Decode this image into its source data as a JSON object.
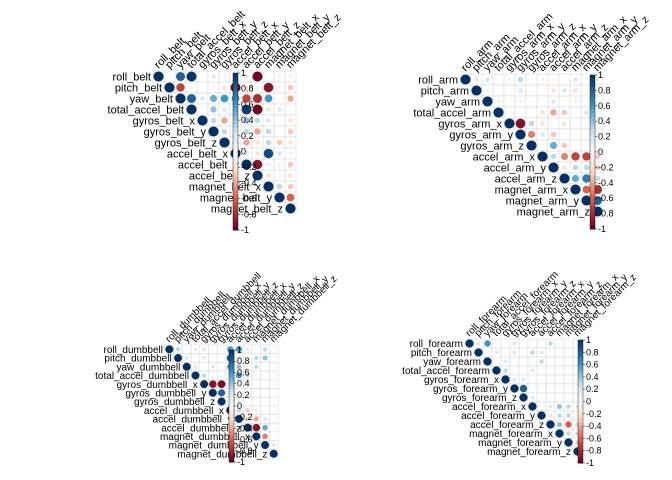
{
  "colors": {
    "neg_strong": "#67001f",
    "neg_mid": "#d6604d",
    "neg_light": "#fddbc7",
    "neutral": "#f7f7f7",
    "pos_light": "#d1e5f0",
    "pos_mid": "#4393c3",
    "pos_strong": "#053061",
    "grid": "#d9d9d9"
  },
  "chart_data": [
    {
      "type": "heatmap",
      "shape": "circle",
      "triangle": "upper",
      "legend_ticks": [
        "1",
        "0.8",
        "0.6",
        "0.4",
        "0.2",
        "0",
        "-0.2",
        "-0.4",
        "-0.6",
        "-0.8",
        "-1"
      ],
      "labels": [
        "roll_belt",
        "pitch_belt",
        "yaw_belt",
        "total_accel_belt",
        "gyros_belt_x",
        "gyros_belt_y",
        "gyros_belt_z",
        "accel_belt_x",
        "accel_belt_y",
        "accel_belt_z",
        "magnet_belt_x",
        "magnet_belt_y",
        "magnet_belt_z"
      ],
      "cells": [
        [
          0,
          2,
          0.8
        ],
        [
          0,
          3,
          0.98
        ],
        [
          0,
          5,
          0.2
        ],
        [
          0,
          6,
          0.1
        ],
        [
          0,
          7,
          -0.2
        ],
        [
          0,
          8,
          0.2
        ],
        [
          0,
          9,
          -0.98
        ],
        [
          0,
          11,
          0.1
        ],
        [
          0,
          12,
          0.1
        ],
        [
          1,
          2,
          -0.7
        ],
        [
          1,
          3,
          -0.1
        ],
        [
          1,
          5,
          -0.1
        ],
        [
          1,
          6,
          -0.2
        ],
        [
          1,
          7,
          -0.97
        ],
        [
          1,
          8,
          -0.2
        ],
        [
          1,
          9,
          0.1
        ],
        [
          1,
          10,
          -0.9
        ],
        [
          1,
          11,
          -0.1
        ],
        [
          1,
          12,
          -0.3
        ],
        [
          2,
          3,
          0.8
        ],
        [
          2,
          4,
          0.2
        ],
        [
          2,
          5,
          0.5
        ],
        [
          2,
          6,
          0.6
        ],
        [
          2,
          7,
          0.6
        ],
        [
          2,
          8,
          -0.7
        ],
        [
          2,
          9,
          -0.8
        ],
        [
          2,
          10,
          0.6
        ],
        [
          2,
          12,
          -0.4
        ],
        [
          3,
          5,
          0.4
        ],
        [
          3,
          6,
          0.2
        ],
        [
          3,
          7,
          0.3
        ],
        [
          3,
          8,
          0.95
        ],
        [
          3,
          9,
          -0.97
        ],
        [
          3,
          10,
          -0.2
        ],
        [
          3,
          11,
          0.2
        ],
        [
          4,
          5,
          0.3
        ],
        [
          4,
          6,
          -0.4
        ],
        [
          4,
          7,
          -0.2
        ],
        [
          4,
          8,
          0.4
        ],
        [
          4,
          9,
          0.3
        ],
        [
          4,
          10,
          0.2
        ],
        [
          4,
          12,
          -0.2
        ],
        [
          5,
          6,
          0.3
        ],
        [
          5,
          7,
          0.2
        ],
        [
          5,
          8,
          0.3
        ],
        [
          5,
          9,
          -0.4
        ],
        [
          5,
          10,
          0.3
        ],
        [
          5,
          12,
          -0.3
        ],
        [
          6,
          7,
          0.4
        ],
        [
          6,
          8,
          -0.4
        ],
        [
          6,
          9,
          -0.2
        ],
        [
          6,
          10,
          0.3
        ],
        [
          6,
          11,
          -0.3
        ],
        [
          6,
          12,
          -0.2
        ],
        [
          7,
          8,
          0.2
        ],
        [
          7,
          9,
          -0.2
        ],
        [
          7,
          10,
          0.9
        ],
        [
          7,
          11,
          0.2
        ],
        [
          7,
          12,
          -0.1
        ],
        [
          8,
          9,
          -0.9
        ],
        [
          8,
          10,
          -0.1
        ],
        [
          8,
          11,
          0.1
        ],
        [
          8,
          12,
          -0.3
        ],
        [
          9,
          10,
          -0.2
        ],
        [
          9,
          11,
          0.1
        ],
        [
          9,
          12,
          -0.2
        ],
        [
          10,
          11,
          0.3
        ],
        [
          10,
          12,
          -0.3
        ],
        [
          11,
          12,
          -0.6
        ]
      ]
    },
    {
      "type": "heatmap",
      "shape": "circle",
      "triangle": "upper",
      "legend_ticks": [
        "1",
        "0.8",
        "0.6",
        "0.4",
        "0.2",
        "0",
        "-0.2",
        "-0.4",
        "-0.6",
        "-0.8",
        "-1"
      ],
      "labels": [
        "roll_arm",
        "pitch_arm",
        "yaw_arm",
        "total_accel_arm",
        "gyros_arm_x",
        "gyros_arm_y",
        "gyros_arm_z",
        "accel_arm_x",
        "accel_arm_y",
        "accel_arm_z",
        "magnet_arm_x",
        "magnet_arm_y",
        "magnet_arm_z"
      ],
      "cells": [
        [
          0,
          1,
          -0.2
        ],
        [
          0,
          2,
          0.2
        ],
        [
          0,
          4,
          -0.1
        ],
        [
          0,
          5,
          0.3
        ],
        [
          0,
          7,
          0.1
        ],
        [
          0,
          10,
          0.2
        ],
        [
          0,
          12,
          -0.1
        ],
        [
          1,
          2,
          -0.1
        ],
        [
          1,
          5,
          0.2
        ],
        [
          1,
          8,
          -0.2
        ],
        [
          1,
          9,
          0.2
        ],
        [
          1,
          10,
          -0.2
        ],
        [
          2,
          3,
          0.1
        ],
        [
          2,
          5,
          -0.1
        ],
        [
          2,
          8,
          0.2
        ],
        [
          2,
          10,
          -0.1
        ],
        [
          3,
          7,
          -0.2
        ],
        [
          3,
          8,
          -0.4
        ],
        [
          3,
          9,
          -0.3
        ],
        [
          3,
          11,
          0.2
        ],
        [
          4,
          5,
          -0.92
        ],
        [
          4,
          6,
          0.3
        ],
        [
          4,
          7,
          -0.2
        ],
        [
          4,
          9,
          -0.2
        ],
        [
          5,
          6,
          -0.5
        ],
        [
          5,
          7,
          0.2
        ],
        [
          5,
          8,
          -0.3
        ],
        [
          6,
          8,
          0.5
        ],
        [
          6,
          9,
          -0.3
        ],
        [
          7,
          8,
          0.3
        ],
        [
          7,
          9,
          -0.5
        ],
        [
          7,
          10,
          -0.7
        ],
        [
          7,
          11,
          -0.7
        ],
        [
          7,
          12,
          -0.3
        ],
        [
          8,
          9,
          -0.2
        ],
        [
          8,
          10,
          0.3
        ],
        [
          8,
          11,
          0.3
        ],
        [
          8,
          12,
          -0.3
        ],
        [
          9,
          10,
          0.5
        ],
        [
          9,
          11,
          0.7
        ],
        [
          9,
          12,
          0.3
        ],
        [
          10,
          11,
          -0.6
        ],
        [
          10,
          12,
          -0.8
        ],
        [
          11,
          12,
          0.8
        ]
      ]
    },
    {
      "type": "heatmap",
      "shape": "circle",
      "triangle": "upper",
      "legend_ticks": [
        "1",
        "0.8",
        "0.6",
        "0.4",
        "0.2",
        "0",
        "-0.2",
        "-0.4",
        "-0.6",
        "-0.8",
        "-1"
      ],
      "labels": [
        "roll_dumbbell",
        "pitch_dumbbell",
        "yaw_dumbbell",
        "total_accel_dumbbell",
        "gyros_dumbbell_x",
        "gyros_dumbbell_y",
        "gyros_dumbbell_z",
        "accel_dumbbell_x",
        "accel_dumbbell_y",
        "accel_dumbbell_z",
        "magnet_dumbbell_x",
        "magnet_dumbbell_y",
        "magnet_dumbbell_z"
      ],
      "cells": [
        [
          0,
          1,
          0.3
        ],
        [
          0,
          3,
          0.2
        ],
        [
          0,
          4,
          0.2
        ],
        [
          0,
          7,
          0.6
        ],
        [
          0,
          8,
          0.6
        ],
        [
          0,
          9,
          0.2
        ],
        [
          0,
          11,
          0.3
        ],
        [
          1,
          2,
          0.2
        ],
        [
          1,
          4,
          0.2
        ],
        [
          1,
          7,
          0.8
        ],
        [
          1,
          8,
          0.2
        ],
        [
          1,
          10,
          0.3
        ],
        [
          1,
          11,
          0.4
        ],
        [
          2,
          3,
          0.2
        ],
        [
          2,
          5,
          0.2
        ],
        [
          2,
          7,
          0.6
        ],
        [
          2,
          8,
          0.4
        ],
        [
          2,
          10,
          0.3
        ],
        [
          3,
          4,
          0.3
        ],
        [
          3,
          8,
          0.6
        ],
        [
          3,
          9,
          0.3
        ],
        [
          4,
          5,
          -0.9
        ],
        [
          4,
          6,
          -0.95
        ],
        [
          5,
          6,
          0.8
        ],
        [
          6,
          8,
          0.2
        ],
        [
          7,
          8,
          0.3
        ],
        [
          7,
          9,
          -0.3
        ],
        [
          7,
          10,
          0.2
        ],
        [
          8,
          9,
          -0.3
        ],
        [
          8,
          10,
          -0.4
        ],
        [
          8,
          11,
          0.2
        ],
        [
          9,
          10,
          -0.9
        ],
        [
          9,
          11,
          0.5
        ],
        [
          10,
          11,
          -0.5
        ],
        [
          11,
          12,
          0.2
        ]
      ]
    },
    {
      "type": "heatmap",
      "shape": "circle",
      "triangle": "upper",
      "legend_ticks": [
        "1",
        "0.8",
        "0.6",
        "0.4",
        "0.2",
        "0",
        "-0.2",
        "-0.4",
        "-0.6",
        "-0.8",
        "-1"
      ],
      "labels": [
        "roll_forearm",
        "pitch_forearm",
        "yaw_forearm",
        "total_accel_forearm",
        "gyros_forearm_x",
        "gyros_forearm_y",
        "gyros_forearm_z",
        "accel_forearm_x",
        "accel_forearm_y",
        "accel_forearm_z",
        "magnet_forearm_x",
        "magnet_forearm_y",
        "magnet_forearm_z"
      ],
      "cells": [
        [
          0,
          1,
          0.2
        ],
        [
          0,
          2,
          0.6
        ],
        [
          0,
          5,
          0.2
        ],
        [
          0,
          9,
          0.3
        ],
        [
          1,
          3,
          0.2
        ],
        [
          1,
          5,
          0.2
        ],
        [
          1,
          7,
          0.3
        ],
        [
          1,
          8,
          0.2
        ],
        [
          2,
          4,
          0.2
        ],
        [
          2,
          8,
          0.3
        ],
        [
          3,
          4,
          0.3
        ],
        [
          3,
          7,
          0.2
        ],
        [
          4,
          5,
          0.2
        ],
        [
          4,
          6,
          0.2
        ],
        [
          5,
          6,
          0.8
        ],
        [
          6,
          7,
          0.2
        ],
        [
          7,
          9,
          0.2
        ],
        [
          7,
          10,
          0.4
        ],
        [
          7,
          11,
          0.3
        ],
        [
          7,
          12,
          -0.2
        ],
        [
          8,
          9,
          -0.2
        ],
        [
          8,
          10,
          0.3
        ],
        [
          8,
          11,
          0.3
        ],
        [
          9,
          10,
          0.4
        ],
        [
          9,
          11,
          -0.6
        ],
        [
          9,
          12,
          0.3
        ],
        [
          10,
          11,
          0.3
        ],
        [
          10,
          12,
          0.3
        ],
        [
          11,
          12,
          0.3
        ]
      ]
    }
  ]
}
